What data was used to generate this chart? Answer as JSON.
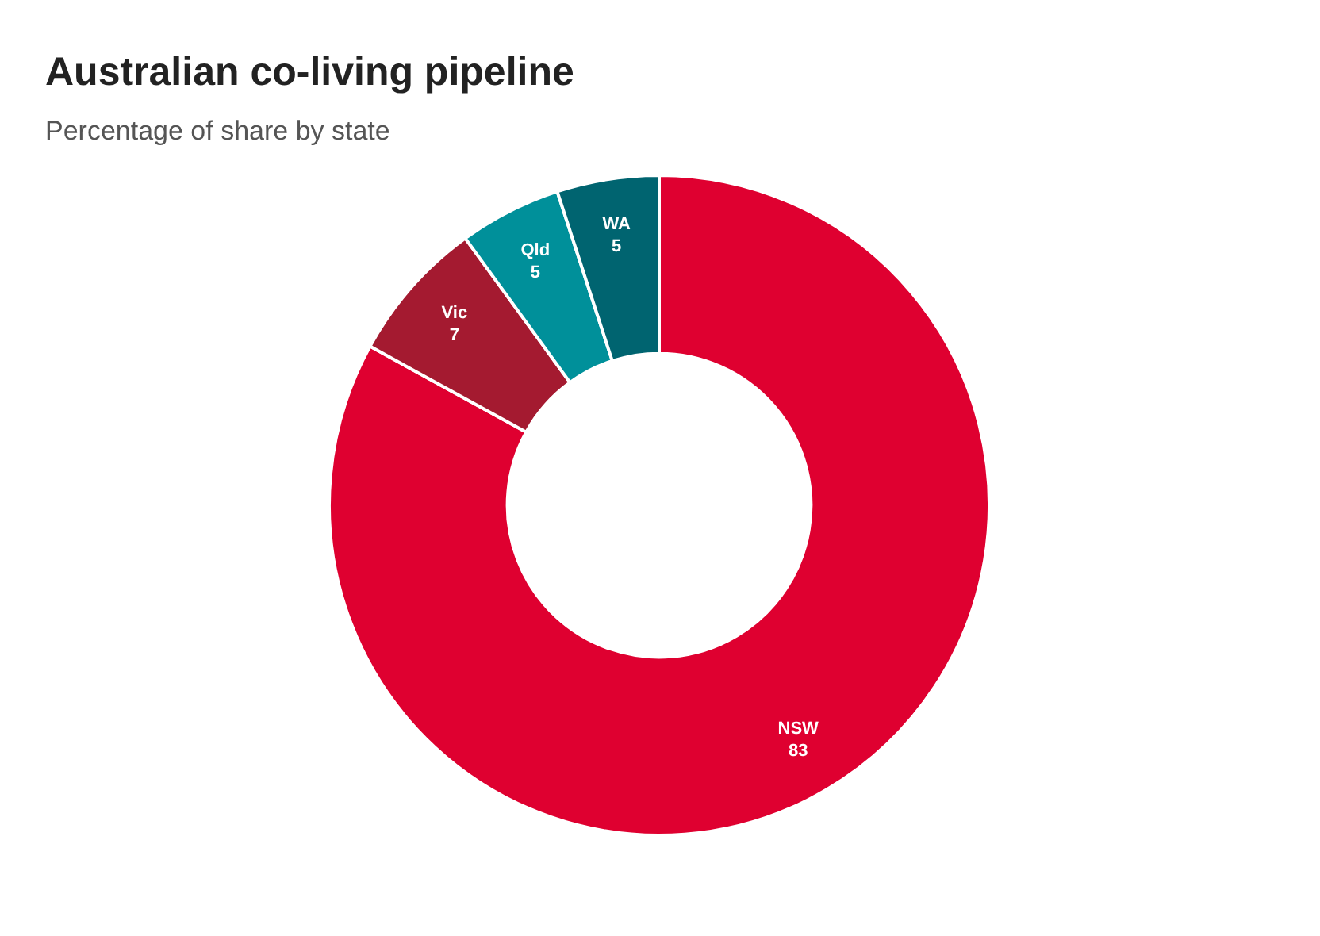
{
  "chart_data": {
    "type": "donut",
    "title": "Australian co-living pipeline",
    "subtitle": "Percentage of share by state",
    "categories": [
      "NSW",
      "Vic",
      "Qld",
      "WA"
    ],
    "values": [
      83,
      7,
      5,
      5
    ],
    "colors": [
      "#df0030",
      "#a41a30",
      "#00909a",
      "#006470"
    ],
    "data_labels": true
  }
}
